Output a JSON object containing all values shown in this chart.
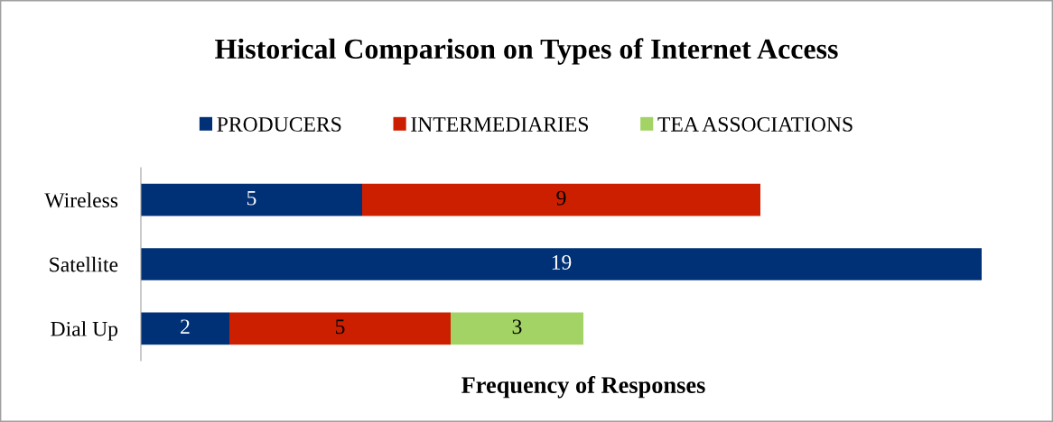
{
  "chart_data": {
    "type": "bar",
    "orientation": "horizontal",
    "stacked": true,
    "title": "Historical Comparison on Types of Internet Access",
    "xlabel": "Frequency of Responses",
    "categories": [
      "Wireless",
      "Satellite",
      "Dial Up"
    ],
    "series": [
      {
        "name": "PRODUCERS",
        "color": "#003075",
        "values": [
          5,
          19,
          2
        ]
      },
      {
        "name": "INTERMEDIARIES",
        "color": "#cc1f00",
        "values": [
          9,
          null,
          5
        ]
      },
      {
        "name": "TEA ASSOCIATIONS",
        "color": "#a2d364",
        "values": [
          null,
          null,
          3
        ]
      }
    ],
    "tick_labels": "y",
    "data_labels": true,
    "legend": "top"
  }
}
